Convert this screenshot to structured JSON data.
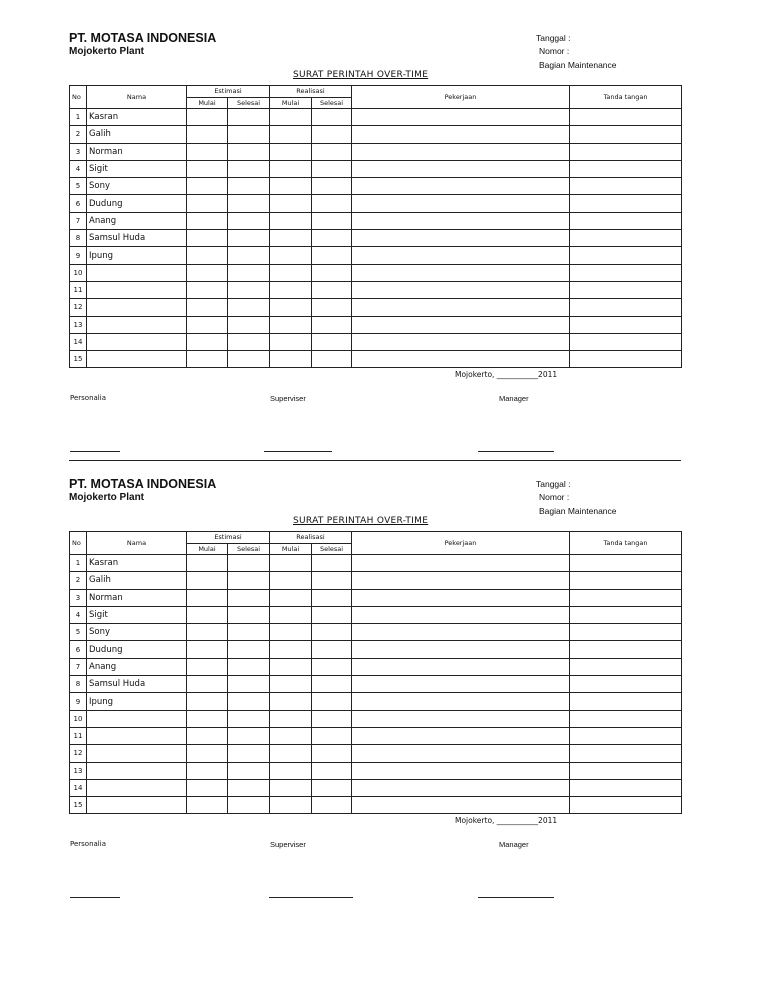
{
  "forms": [
    {
      "company": "PT. MOTASA INDONESIA",
      "plant": "Mojokerto Plant",
      "tanggal": "Tanggal :",
      "nomor": "Nomor :",
      "bagian": "Bagian  Maintenance",
      "title": "SURAT PERINTAH OVER-TIME",
      "headers": {
        "no": "No",
        "nama": "Nama",
        "estimasi": "Estimasi",
        "realisasi": "Realisasi",
        "mulai": "Mulai",
        "selesai": "Selesai",
        "pekerjaan": "Pekerjaan",
        "tanda": "Tanda tangan"
      },
      "rows": [
        {
          "no": "1",
          "nama": "Kasran"
        },
        {
          "no": "2",
          "nama": "Galih"
        },
        {
          "no": "3",
          "nama": "Norman"
        },
        {
          "no": "4",
          "nama": "Sigit"
        },
        {
          "no": "5",
          "nama": "Sony"
        },
        {
          "no": "6",
          "nama": "Dudung"
        },
        {
          "no": "7",
          "nama": "Anang"
        },
        {
          "no": "8",
          "nama": "Samsul Huda"
        },
        {
          "no": "9",
          "nama": "Ipung"
        },
        {
          "no": "10",
          "nama": ""
        },
        {
          "no": "11",
          "nama": ""
        },
        {
          "no": "12",
          "nama": ""
        },
        {
          "no": "13",
          "nama": ""
        },
        {
          "no": "14",
          "nama": ""
        },
        {
          "no": "15",
          "nama": ""
        }
      ],
      "place": "Mojokerto, ___________2011",
      "personalia": "Personalia",
      "superviser": "Superviser",
      "manager": "Manager"
    },
    {
      "company": "PT. MOTASA INDONESIA",
      "plant": "Mojokerto Plant",
      "tanggal": "Tanggal :",
      "nomor": "Nomor :",
      "bagian": "Bagian  Maintenance",
      "title": "SURAT PERINTAH OVER-TIME",
      "headers": {
        "no": "No",
        "nama": "Nama",
        "estimasi": "Estimasi",
        "realisasi": "Realisasi",
        "mulai": "Mulai",
        "selesai": "Selesai",
        "pekerjaan": "Pekerjaan",
        "tanda": "Tanda tangan"
      },
      "rows": [
        {
          "no": "1",
          "nama": "Kasran"
        },
        {
          "no": "2",
          "nama": "Galih"
        },
        {
          "no": "3",
          "nama": "Norman"
        },
        {
          "no": "4",
          "nama": "Sigit"
        },
        {
          "no": "5",
          "nama": "Sony"
        },
        {
          "no": "6",
          "nama": "Dudung"
        },
        {
          "no": "7",
          "nama": "Anang"
        },
        {
          "no": "8",
          "nama": "Samsul Huda"
        },
        {
          "no": "9",
          "nama": "Ipung"
        },
        {
          "no": "10",
          "nama": ""
        },
        {
          "no": "11",
          "nama": ""
        },
        {
          "no": "12",
          "nama": ""
        },
        {
          "no": "13",
          "nama": ""
        },
        {
          "no": "14",
          "nama": ""
        },
        {
          "no": "15",
          "nama": ""
        }
      ],
      "place": "Mojokerto, ___________2011",
      "personalia": "Personalia",
      "superviser": "Superviser",
      "manager": "Manager"
    }
  ]
}
